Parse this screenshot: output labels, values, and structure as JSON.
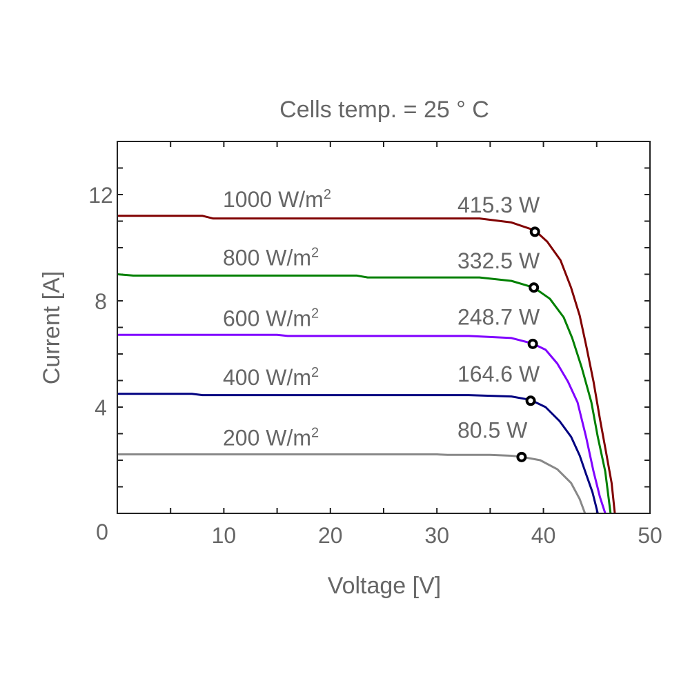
{
  "chart_data": {
    "type": "line",
    "title": "Cells temp. = 25 ° C",
    "xlabel": "Voltage [V]",
    "ylabel": "Current [A]",
    "xlim": [
      0,
      50
    ],
    "ylim": [
      0,
      14
    ],
    "x_ticks": [
      10,
      20,
      30,
      40,
      50
    ],
    "y_ticks": [
      4,
      8,
      12
    ],
    "origin_label": "0",
    "grid": false,
    "text_color": "#666666",
    "series": [
      {
        "name": "1000 W/m²",
        "irradiance": "1000 W/m",
        "sup": "2",
        "color": "#800000",
        "mpp": {
          "v": 39.2,
          "i": 10.6,
          "label": "415.3 W"
        },
        "points": [
          [
            0,
            11.2
          ],
          [
            8,
            11.2
          ],
          [
            9,
            11.1
          ],
          [
            34,
            11.1
          ],
          [
            37,
            10.95
          ],
          [
            39.2,
            10.65
          ],
          [
            40.35,
            10.23
          ],
          [
            41.6,
            9.53
          ],
          [
            42.6,
            8.49
          ],
          [
            43.4,
            7.45
          ],
          [
            44.0,
            6.34
          ],
          [
            44.7,
            4.96
          ],
          [
            45.3,
            3.56
          ],
          [
            45.85,
            2.36
          ],
          [
            46.4,
            1.14
          ],
          [
            46.7,
            0
          ]
        ]
      },
      {
        "name": "800 W/m²",
        "irradiance": "800 W/m",
        "sup": "2",
        "color": "#008000",
        "mpp": {
          "v": 39.1,
          "i": 8.5,
          "label": "332.5 W"
        },
        "points": [
          [
            0,
            9.0
          ],
          [
            1.5,
            8.95
          ],
          [
            22.5,
            8.95
          ],
          [
            23.5,
            8.88
          ],
          [
            34,
            8.88
          ],
          [
            37,
            8.75
          ],
          [
            39.1,
            8.5
          ],
          [
            40.6,
            8.08
          ],
          [
            41.9,
            7.38
          ],
          [
            42.7,
            6.6
          ],
          [
            43.6,
            5.48
          ],
          [
            44.5,
            4.18
          ],
          [
            45.1,
            2.88
          ],
          [
            45.8,
            1.58
          ],
          [
            46.3,
            0
          ]
        ]
      },
      {
        "name": "600 W/m²",
        "irradiance": "600 W/m",
        "sup": "2",
        "color": "#8000ff",
        "mpp": {
          "v": 39.0,
          "i": 6.38,
          "label": "248.7 W"
        },
        "points": [
          [
            0,
            6.72
          ],
          [
            15,
            6.72
          ],
          [
            16,
            6.68
          ],
          [
            33,
            6.68
          ],
          [
            37,
            6.6
          ],
          [
            39,
            6.39
          ],
          [
            40.2,
            6.16
          ],
          [
            41.3,
            5.64
          ],
          [
            42.3,
            4.96
          ],
          [
            43.2,
            4.18
          ],
          [
            44.0,
            2.88
          ],
          [
            44.7,
            1.58
          ],
          [
            45.3,
            0.62
          ],
          [
            45.8,
            0
          ]
        ]
      },
      {
        "name": "400 W/m²",
        "irradiance": "400 W/m",
        "sup": "2",
        "color": "#000080",
        "mpp": {
          "v": 38.8,
          "i": 4.24,
          "label": "164.6 W"
        },
        "points": [
          [
            0,
            4.5
          ],
          [
            7,
            4.5
          ],
          [
            8,
            4.45
          ],
          [
            33,
            4.45
          ],
          [
            37,
            4.4
          ],
          [
            38.8,
            4.27
          ],
          [
            40.2,
            4.0
          ],
          [
            41.5,
            3.48
          ],
          [
            42.6,
            2.88
          ],
          [
            43.4,
            2.18
          ],
          [
            44.0,
            1.48
          ],
          [
            44.6,
            0.8
          ],
          [
            45.1,
            0
          ]
        ]
      },
      {
        "name": "200 W/m²",
        "irradiance": "200 W/m",
        "sup": "2",
        "color": "#888888",
        "mpp": {
          "v": 37.95,
          "i": 2.12,
          "label": "80.5 W"
        },
        "points": [
          [
            0,
            2.22
          ],
          [
            30,
            2.22
          ],
          [
            31,
            2.2
          ],
          [
            35,
            2.2
          ],
          [
            37,
            2.17
          ],
          [
            37.95,
            2.13
          ],
          [
            39.7,
            2.0
          ],
          [
            41.3,
            1.66
          ],
          [
            42.6,
            1.14
          ],
          [
            43.4,
            0.54
          ],
          [
            43.9,
            0
          ]
        ]
      }
    ]
  }
}
